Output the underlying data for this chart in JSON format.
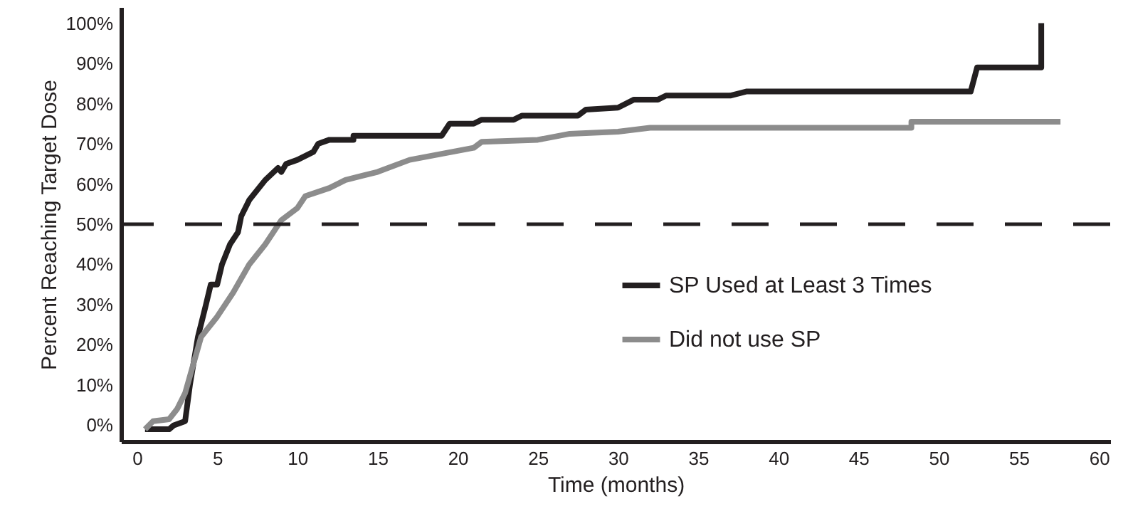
{
  "chart_data": {
    "type": "line",
    "xlabel": "Time (months)",
    "ylabel": "Percent Reaching Target Dose",
    "xlim": [
      -1,
      60.7
    ],
    "ylim": [
      -4,
      104
    ],
    "xticks": [
      0,
      5,
      10,
      15,
      20,
      25,
      30,
      35,
      40,
      45,
      50,
      55,
      60
    ],
    "yticks": [
      {
        "value": 0,
        "label": "0%"
      },
      {
        "value": 10,
        "label": "10%"
      },
      {
        "value": 20,
        "label": "20%"
      },
      {
        "value": 30,
        "label": "30%"
      },
      {
        "value": 40,
        "label": "40%"
      },
      {
        "value": 50,
        "label": "50%"
      },
      {
        "value": 60,
        "label": "60%"
      },
      {
        "value": 70,
        "label": "70%"
      },
      {
        "value": 80,
        "label": "80%"
      },
      {
        "value": 90,
        "label": "90%"
      },
      {
        "value": 100,
        "label": "100%"
      }
    ],
    "grid": false,
    "legend": "right",
    "marker": "none",
    "line_style": "solid",
    "ref_lines": [
      {
        "axis": "y",
        "value": 50,
        "label": null,
        "color": "#231f20",
        "line_style": "dashed"
      }
    ],
    "series": [
      {
        "name": "SP Used at Least 3 Times",
        "color": "#231f20",
        "x": [
          0.5,
          2,
          2.3,
          3,
          3.3,
          3.8,
          4.3,
          4.6,
          5,
          5.3,
          5.8,
          6.3,
          6.5,
          7,
          8,
          8.8,
          9,
          9.3,
          10,
          11,
          11.3,
          12,
          13.5,
          13.5,
          19,
          19.5,
          21,
          21.5,
          23.5,
          24,
          27.5,
          28,
          30,
          31,
          32.5,
          33,
          37,
          38,
          52,
          52.4,
          56.4,
          56.4
        ],
        "values": [
          -1,
          -1,
          0,
          1,
          10,
          22,
          30,
          35,
          35,
          40,
          45,
          48,
          52,
          56,
          61,
          64,
          63,
          65,
          66,
          68,
          70,
          71,
          71,
          72,
          72,
          75,
          75,
          76,
          76,
          77,
          77,
          78.5,
          79,
          81,
          81,
          82,
          82,
          83,
          83,
          89,
          89,
          100
        ]
      },
      {
        "name": "Did not use SP",
        "color": "#8c8c8c",
        "x": [
          0.5,
          1,
          2,
          2.5,
          3,
          3.5,
          4,
          5,
          6,
          7,
          8,
          9,
          10,
          10.5,
          12,
          13,
          15,
          17,
          19,
          21,
          21.5,
          25,
          27,
          30,
          32,
          48.3,
          48.3,
          57.6
        ],
        "values": [
          -1,
          1,
          1.5,
          4,
          8,
          15,
          22,
          27,
          33,
          40,
          45,
          51,
          54,
          57,
          59,
          61,
          63,
          66,
          67.5,
          69,
          70.5,
          71,
          72.5,
          73,
          74,
          74,
          75.5,
          75.5
        ]
      }
    ]
  }
}
